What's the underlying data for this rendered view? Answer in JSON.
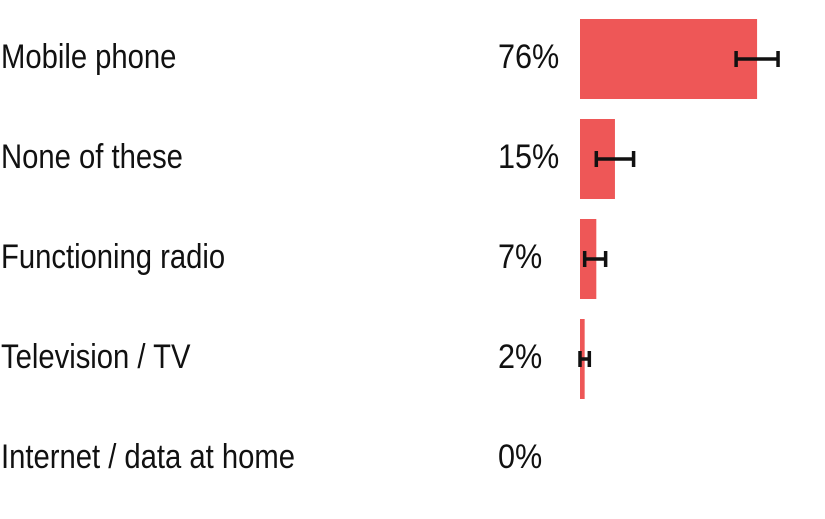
{
  "chart_data": {
    "type": "bar",
    "orientation": "horizontal",
    "title": "",
    "xlabel": "",
    "ylabel": "",
    "categories": [
      "Mobile phone",
      "None of these",
      "Functioning radio",
      "Television / TV",
      "Internet / data at home"
    ],
    "value_labels": [
      "76%",
      "15%",
      "7%",
      "2%",
      "0%"
    ],
    "values": [
      76,
      15,
      7,
      2,
      0
    ],
    "error_low": [
      67,
      7,
      2,
      0,
      0
    ],
    "error_high": [
      85,
      23,
      11,
      4,
      0
    ],
    "xlim": [
      0,
      100
    ],
    "grid": false,
    "legend": "none",
    "bar_color": "#ee5757",
    "error_color": "#111111"
  }
}
